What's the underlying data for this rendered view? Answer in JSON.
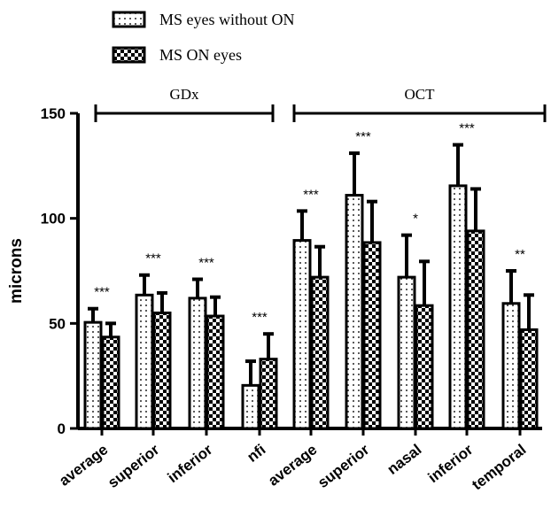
{
  "chart_data": {
    "type": "bar",
    "ylabel": "microns",
    "ylim": [
      0,
      150
    ],
    "yticks": [
      0,
      50,
      100,
      150
    ],
    "legend_position": "top-left",
    "groups": [
      {
        "label": "GDx",
        "categories": [
          0,
          3
        ]
      },
      {
        "label": "OCT",
        "categories": [
          4,
          8
        ]
      }
    ],
    "categories": [
      "average",
      "superior",
      "inferior",
      "nfi",
      "average",
      "superior",
      "nasal",
      "inferior",
      "temporal"
    ],
    "series": [
      {
        "name": "MS eyes without ON",
        "pattern": "dots",
        "values": [
          50.5,
          63.5,
          62,
          20.5,
          89.5,
          111,
          72,
          115.5,
          59.5
        ],
        "errors": [
          6.5,
          9.5,
          9,
          11.5,
          14,
          20,
          20,
          19.5,
          15.5
        ]
      },
      {
        "name": "MS ON eyes",
        "pattern": "checker",
        "values": [
          43.5,
          55,
          53.5,
          33,
          72,
          88.5,
          58.5,
          94,
          47
        ],
        "errors": [
          6.5,
          9.5,
          9,
          12,
          14.5,
          19.5,
          21,
          20,
          16.5
        ]
      }
    ],
    "annotations": [
      "***",
      "***",
      "***",
      "***",
      "***",
      "***",
      "*",
      "***",
      "**"
    ]
  }
}
